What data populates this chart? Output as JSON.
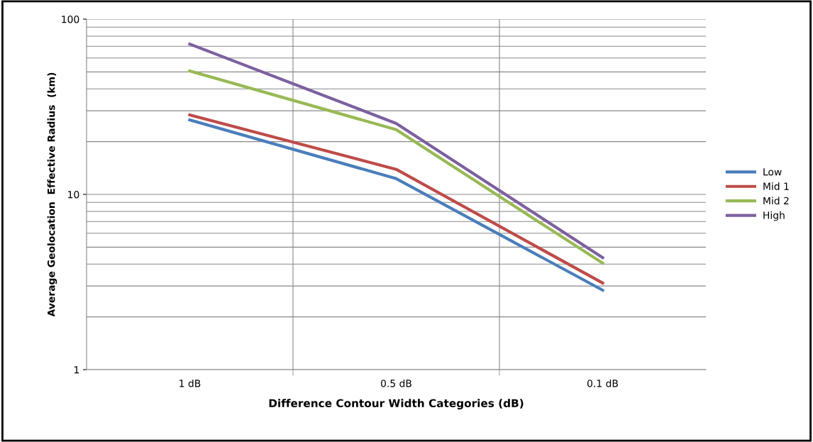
{
  "chart_data": {
    "type": "line",
    "xlabel": "Difference Contour Width Categories (dB)",
    "ylabel": "Average Geolocation  Effective Radius  (km)",
    "categories": [
      "1 dB",
      "0.5 dB",
      "0.1 dB"
    ],
    "series": [
      {
        "name": "Low",
        "color": "#4a7ebb",
        "values": [
          26.6,
          12.3,
          2.84
        ]
      },
      {
        "name": "Mid 1",
        "color": "#be4b48",
        "values": [
          28.4,
          13.9,
          3.12
        ]
      },
      {
        "name": "Mid 2",
        "color": "#98b954",
        "values": [
          50.6,
          23.4,
          4.05
        ]
      },
      {
        "name": "High",
        "color": "#7d60a0",
        "values": [
          72.1,
          25.4,
          4.36
        ]
      }
    ],
    "log": "y",
    "ylim": [
      1,
      100
    ],
    "yticks": [
      1,
      10,
      100
    ],
    "grid": true,
    "legend": "right",
    "marker": "none",
    "line_style": "solid"
  }
}
